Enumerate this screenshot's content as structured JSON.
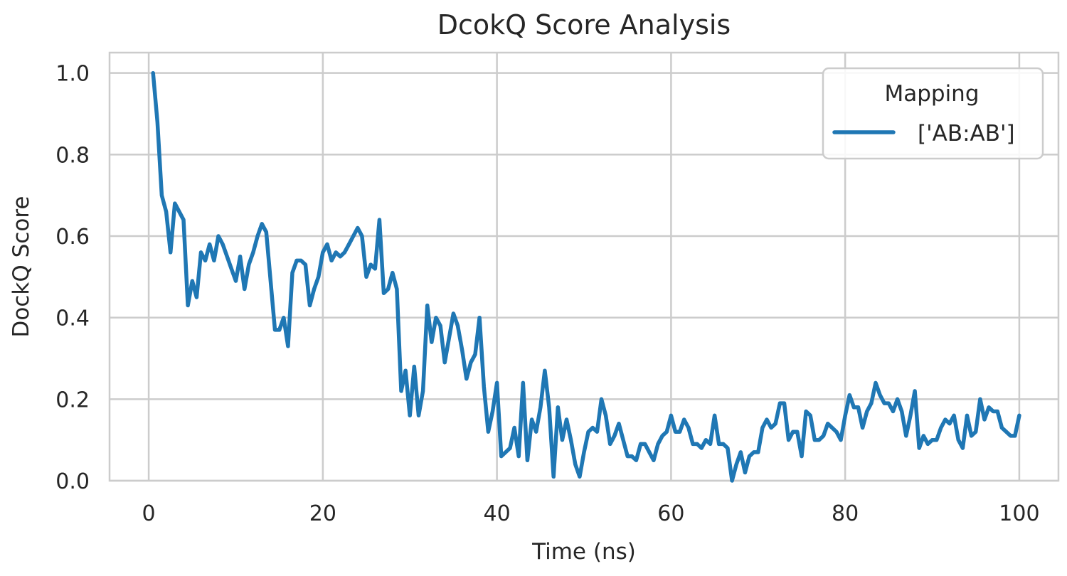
{
  "chart_data": {
    "type": "line",
    "title": "DcokQ Score Analysis",
    "xlabel": "Time (ns)",
    "ylabel": "DockQ Score",
    "xlim": [
      -4.5,
      104.5
    ],
    "ylim": [
      0.0,
      1.05
    ],
    "xticks": [
      0,
      20,
      40,
      60,
      80,
      100
    ],
    "yticks": [
      0.0,
      0.2,
      0.4,
      0.6,
      0.8,
      1.0
    ],
    "grid": true,
    "legend": {
      "title": "Mapping",
      "placement": "top-right"
    },
    "series": [
      {
        "name": "['AB:AB']",
        "color": "#1f77b4",
        "x": [
          0.5,
          1.0,
          1.5,
          2.0,
          2.5,
          3.0,
          3.5,
          4.0,
          4.5,
          5.0,
          5.5,
          6.0,
          6.5,
          7.0,
          7.5,
          8.0,
          8.5,
          9.0,
          9.5,
          10.0,
          10.5,
          11.0,
          11.5,
          12.0,
          12.5,
          13.0,
          13.5,
          14.0,
          14.5,
          15.0,
          15.5,
          16.0,
          16.5,
          17.0,
          17.5,
          18.0,
          18.5,
          19.0,
          19.5,
          20.0,
          20.5,
          21.0,
          21.5,
          22.0,
          22.5,
          23.0,
          23.5,
          24.0,
          24.5,
          25.0,
          25.5,
          26.0,
          26.5,
          27.0,
          27.5,
          28.0,
          28.5,
          29.0,
          29.5,
          30.0,
          30.5,
          31.0,
          31.5,
          32.0,
          32.5,
          33.0,
          33.5,
          34.0,
          34.5,
          35.0,
          35.5,
          36.0,
          36.5,
          37.0,
          37.5,
          38.0,
          38.5,
          39.0,
          39.5,
          40.0,
          40.5,
          41.0,
          41.5,
          42.0,
          42.5,
          43.0,
          43.5,
          44.0,
          44.5,
          45.0,
          45.5,
          46.0,
          46.5,
          47.0,
          47.5,
          48.0,
          48.5,
          49.0,
          49.5,
          50.0,
          50.5,
          51.0,
          51.5,
          52.0,
          52.5,
          53.0,
          53.5,
          54.0,
          54.5,
          55.0,
          55.5,
          56.0,
          56.5,
          57.0,
          57.5,
          58.0,
          58.5,
          59.0,
          59.5,
          60.0,
          60.5,
          61.0,
          61.5,
          62.0,
          62.5,
          63.0,
          63.5,
          64.0,
          64.5,
          65.0,
          65.5,
          66.0,
          66.5,
          67.0,
          67.5,
          68.0,
          68.5,
          69.0,
          69.5,
          70.0,
          70.5,
          71.0,
          71.5,
          72.0,
          72.5,
          73.0,
          73.5,
          74.0,
          74.5,
          75.0,
          75.5,
          76.0,
          76.5,
          77.0,
          77.5,
          78.0,
          78.5,
          79.0,
          79.5,
          80.0,
          80.5,
          81.0,
          81.5,
          82.0,
          82.5,
          83.0,
          83.5,
          84.0,
          84.5,
          85.0,
          85.5,
          86.0,
          86.5,
          87.0,
          87.5,
          88.0,
          88.5,
          89.0,
          89.5,
          90.0,
          90.5,
          91.0,
          91.5,
          92.0,
          92.5,
          93.0,
          93.5,
          94.0,
          94.5,
          95.0,
          95.5,
          96.0,
          96.5,
          97.0,
          97.5,
          98.0,
          98.5,
          99.0,
          99.5,
          100.0
        ],
        "y": [
          1.0,
          0.88,
          0.7,
          0.66,
          0.56,
          0.68,
          0.66,
          0.64,
          0.43,
          0.49,
          0.45,
          0.56,
          0.54,
          0.58,
          0.54,
          0.6,
          0.58,
          0.55,
          0.52,
          0.49,
          0.55,
          0.47,
          0.53,
          0.56,
          0.6,
          0.63,
          0.61,
          0.49,
          0.37,
          0.37,
          0.4,
          0.33,
          0.51,
          0.54,
          0.54,
          0.53,
          0.43,
          0.47,
          0.5,
          0.56,
          0.58,
          0.54,
          0.56,
          0.55,
          0.56,
          0.58,
          0.6,
          0.62,
          0.6,
          0.5,
          0.53,
          0.52,
          0.64,
          0.46,
          0.47,
          0.51,
          0.47,
          0.22,
          0.27,
          0.16,
          0.28,
          0.16,
          0.22,
          0.43,
          0.34,
          0.4,
          0.38,
          0.29,
          0.35,
          0.41,
          0.38,
          0.32,
          0.25,
          0.29,
          0.31,
          0.4,
          0.23,
          0.12,
          0.17,
          0.24,
          0.06,
          0.07,
          0.08,
          0.13,
          0.06,
          0.24,
          0.05,
          0.15,
          0.12,
          0.18,
          0.27,
          0.18,
          0.01,
          0.18,
          0.1,
          0.15,
          0.1,
          0.04,
          0.01,
          0.07,
          0.12,
          0.13,
          0.12,
          0.2,
          0.16,
          0.09,
          0.11,
          0.14,
          0.1,
          0.06,
          0.06,
          0.05,
          0.09,
          0.09,
          0.07,
          0.05,
          0.09,
          0.11,
          0.12,
          0.16,
          0.12,
          0.12,
          0.15,
          0.13,
          0.09,
          0.09,
          0.08,
          0.1,
          0.09,
          0.16,
          0.09,
          0.09,
          0.08,
          0.0,
          0.04,
          0.07,
          0.02,
          0.06,
          0.07,
          0.07,
          0.13,
          0.15,
          0.13,
          0.14,
          0.19,
          0.19,
          0.1,
          0.12,
          0.12,
          0.06,
          0.17,
          0.16,
          0.1,
          0.1,
          0.11,
          0.14,
          0.13,
          0.12,
          0.1,
          0.16,
          0.21,
          0.18,
          0.18,
          0.13,
          0.17,
          0.19,
          0.24,
          0.21,
          0.19,
          0.19,
          0.17,
          0.2,
          0.17,
          0.11,
          0.16,
          0.22,
          0.08,
          0.11,
          0.09,
          0.1,
          0.1,
          0.13,
          0.15,
          0.14,
          0.16,
          0.1,
          0.08,
          0.16,
          0.11,
          0.12,
          0.2,
          0.15,
          0.18,
          0.17,
          0.17,
          0.13,
          0.12,
          0.11,
          0.11,
          0.16
        ]
      }
    ]
  }
}
